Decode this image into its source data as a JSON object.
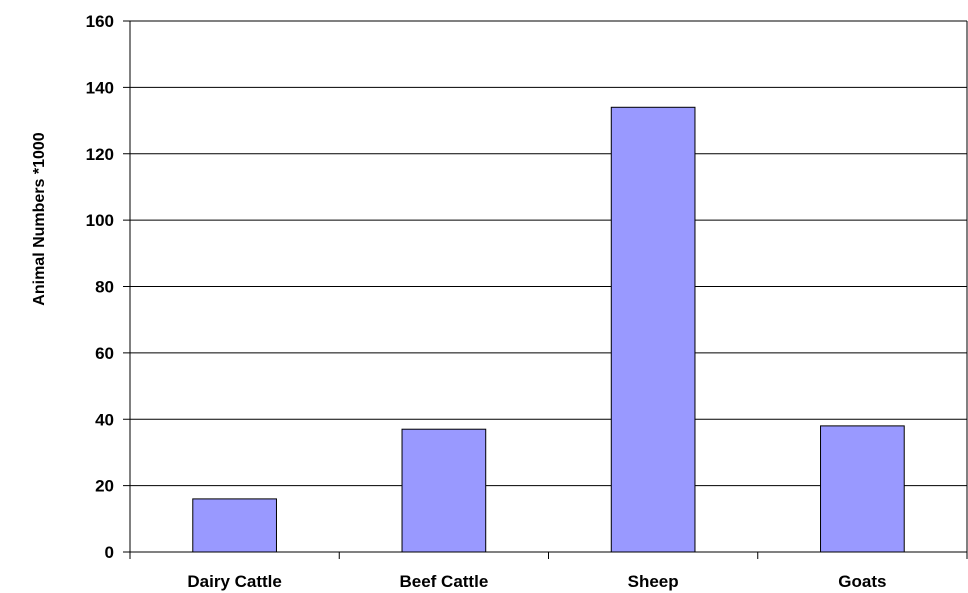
{
  "chart_data": {
    "type": "bar",
    "title": "",
    "xlabel": "",
    "ylabel": "Animal Numbers *1000",
    "categories": [
      "Dairy Cattle",
      "Beef Cattle",
      "Sheep",
      "Goats"
    ],
    "values": [
      16,
      37,
      134,
      38
    ],
    "ylim": [
      0,
      160
    ],
    "yticks": [
      0,
      20,
      40,
      60,
      80,
      100,
      120,
      140,
      160
    ],
    "grid": true,
    "legend": "none",
    "colors": {
      "bar_fill": "#9999ff",
      "bar_stroke": "#000000",
      "grid": "#000000",
      "axis": "#000000"
    }
  }
}
